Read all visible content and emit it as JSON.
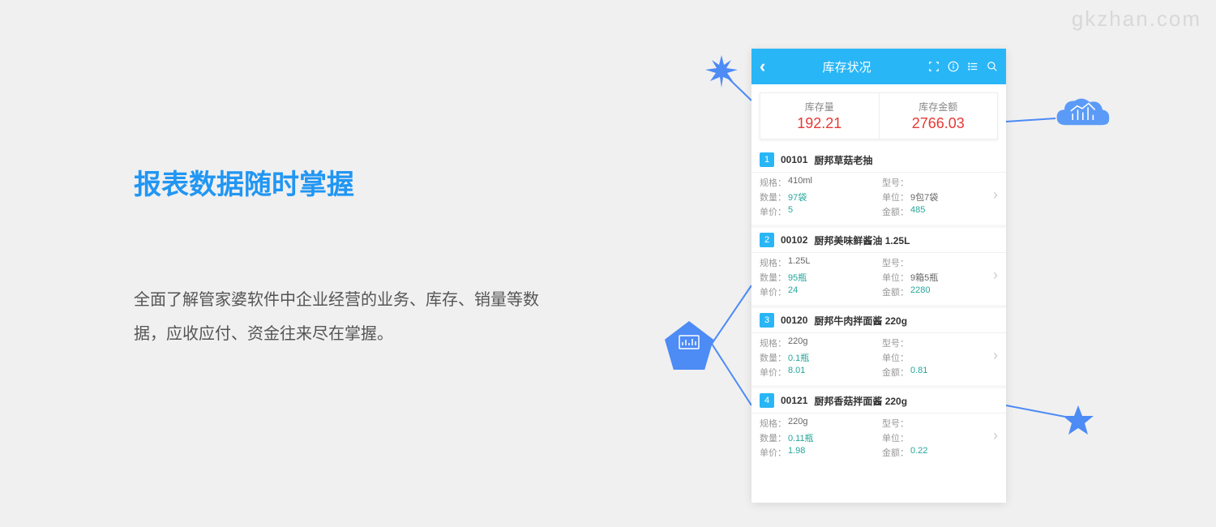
{
  "watermark": "gkzhan.com",
  "title": "报表数据随时掌握",
  "description": "全面了解管家婆软件中企业经营的业务、库存、销量等数据，应收应付、资金往来尽在掌握。",
  "phone": {
    "header_title": "库存状况",
    "summary": [
      {
        "label": "库存量",
        "value": "192.21"
      },
      {
        "label": "库存金额",
        "value": "2766.03"
      }
    ],
    "items": [
      {
        "num": "1",
        "code": "00101",
        "name": "厨邦草菇老抽",
        "spec": "410ml",
        "model": "",
        "qty": "97袋",
        "unit": "9包7袋",
        "price": "5",
        "amount": "485"
      },
      {
        "num": "2",
        "code": "00102",
        "name": "厨邦美味鲜酱油 1.25L",
        "spec": "1.25L",
        "model": "",
        "qty": "95瓶",
        "unit": "9箱5瓶",
        "price": "24",
        "amount": "2280"
      },
      {
        "num": "3",
        "code": "00120",
        "name": "厨邦牛肉拌面酱 220g",
        "spec": "220g",
        "model": "",
        "qty": "0.1瓶",
        "unit": "",
        "price": "8.01",
        "amount": "0.81"
      },
      {
        "num": "4",
        "code": "00121",
        "name": "厨邦香菇拌面酱 220g",
        "spec": "220g",
        "model": "",
        "qty": "0.11瓶",
        "unit": "",
        "price": "1.98",
        "amount": "0.22"
      }
    ],
    "labels": {
      "spec": "规格：",
      "model": "型号：",
      "qty": "数量：",
      "unit": "单位：",
      "price": "单价：",
      "amount": "金额："
    }
  },
  "colors": {
    "brand_blue": "#29b6f6",
    "accent_blue": "#4d8bf5",
    "value_red": "#e53935",
    "value_teal": "#26a69a"
  }
}
